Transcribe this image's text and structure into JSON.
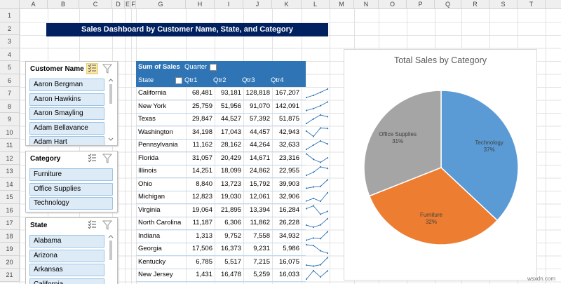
{
  "sheet": {
    "columns": [
      "A",
      "B",
      "C",
      "D",
      "E",
      "F",
      "G",
      "H",
      "I",
      "J",
      "K",
      "L",
      "M",
      "N",
      "O",
      "P",
      "Q",
      "R",
      "S",
      "T"
    ],
    "rows": [
      1,
      2,
      3,
      4,
      5,
      6,
      7,
      8,
      9,
      10,
      11,
      12,
      13,
      14,
      15,
      16,
      17,
      18,
      19,
      20,
      21
    ]
  },
  "header": {
    "title": "Sales Dashboard by Customer Name, State, and Category"
  },
  "slicers": [
    {
      "title": "Customer Name",
      "items": [
        "Aaron Bergman",
        "Aaron Hawkins",
        "Aaron Smayling",
        "Adam Bellavance",
        "Adam Hart"
      ]
    },
    {
      "title": "Category",
      "items": [
        "Furniture",
        "Office Supplies",
        "Technology"
      ]
    },
    {
      "title": "State",
      "items": [
        "Alabama",
        "Arizona",
        "Arkansas",
        "California"
      ]
    }
  ],
  "pivot": {
    "corner": "Sum of Sales",
    "column_field": "Quarter",
    "row_field": "State",
    "columns": [
      "Qtr1",
      "Qtr2",
      "Qtr3",
      "Qtr4"
    ],
    "rows": [
      [
        "California",
        "68,481",
        "93,181",
        "128,818",
        "167,207"
      ],
      [
        "New York",
        "25,759",
        "51,956",
        "91,070",
        "142,091"
      ],
      [
        "Texas",
        "29,847",
        "44,527",
        "57,392",
        "51,875"
      ],
      [
        "Washington",
        "34,198",
        "17,043",
        "44,457",
        "42,943"
      ],
      [
        "Pennsylvania",
        "11,162",
        "28,162",
        "44,264",
        "32,633"
      ],
      [
        "Florida",
        "31,057",
        "20,429",
        "14,671",
        "23,316"
      ],
      [
        "Illinois",
        "14,251",
        "18,099",
        "24,862",
        "22,955"
      ],
      [
        "Ohio",
        "8,840",
        "13,723",
        "15,792",
        "39,903"
      ],
      [
        "Michigan",
        "12,823",
        "19,030",
        "12,061",
        "32,906"
      ],
      [
        "Virginia",
        "19,064",
        "21,895",
        "13,394",
        "16,284"
      ],
      [
        "North Carolina",
        "11,187",
        "6,306",
        "11,862",
        "26,228"
      ],
      [
        "Indiana",
        "1,313",
        "9,752",
        "7,558",
        "34,932"
      ],
      [
        "Georgia",
        "17,506",
        "16,373",
        "9,231",
        "5,986"
      ],
      [
        "Kentucky",
        "6,785",
        "5,517",
        "7,215",
        "16,075"
      ],
      [
        "New Jersey",
        "1,431",
        "16,478",
        "5,259",
        "16,033"
      ]
    ]
  },
  "chart": {
    "type": "pie",
    "title": "Total Sales by Category",
    "categories": [
      "Technology",
      "Furniture",
      "Office Supplies"
    ],
    "values": [
      37,
      32,
      31
    ],
    "value_labels": [
      "37%",
      "32%",
      "31%"
    ],
    "colors": [
      "#5b9bd5",
      "#ed7d31",
      "#a5a5a5"
    ]
  },
  "watermark": "wsxdn.com"
}
